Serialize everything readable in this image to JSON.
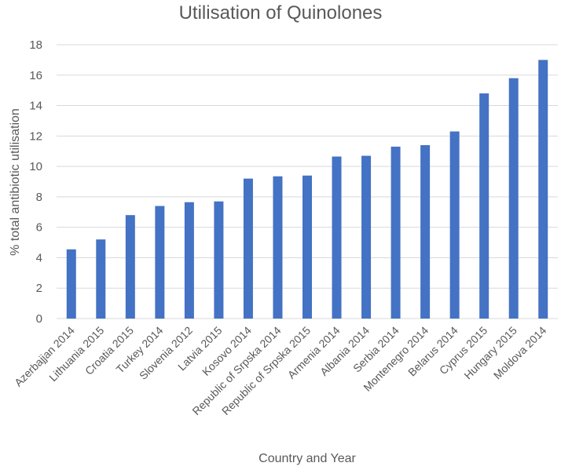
{
  "chart_data": {
    "type": "bar",
    "title": "Utilisation of Quinolones",
    "xlabel": "Country and Year",
    "ylabel": "% total antibiotic utilisation",
    "ylim": [
      0,
      18
    ],
    "yticks": [
      0,
      2,
      4,
      6,
      8,
      10,
      12,
      14,
      16,
      18
    ],
    "grid": true,
    "bar_color": "#4472C4",
    "grid_color": "#D9D9D9",
    "categories": [
      "Azerbajjan 2014",
      "Lithuania 2015",
      "Croatia 2015",
      "Turkey 2014",
      "Slovenia 2012",
      "Latvia 2015",
      "Kosovo 2014",
      "Republic of Srpska 2014",
      "Republic of Srpska 2015",
      "Armenia 2014",
      "Albania 2014",
      "Serbia 2014",
      "Montenegro 2014",
      "Belarus 2014",
      "Cyprus 2015",
      "Hungary 2015",
      "Moldova 2014"
    ],
    "values": [
      4.55,
      5.2,
      6.8,
      7.4,
      7.65,
      7.7,
      9.2,
      9.35,
      9.4,
      10.65,
      10.7,
      11.3,
      11.4,
      12.3,
      14.8,
      15.8,
      17.0
    ]
  }
}
